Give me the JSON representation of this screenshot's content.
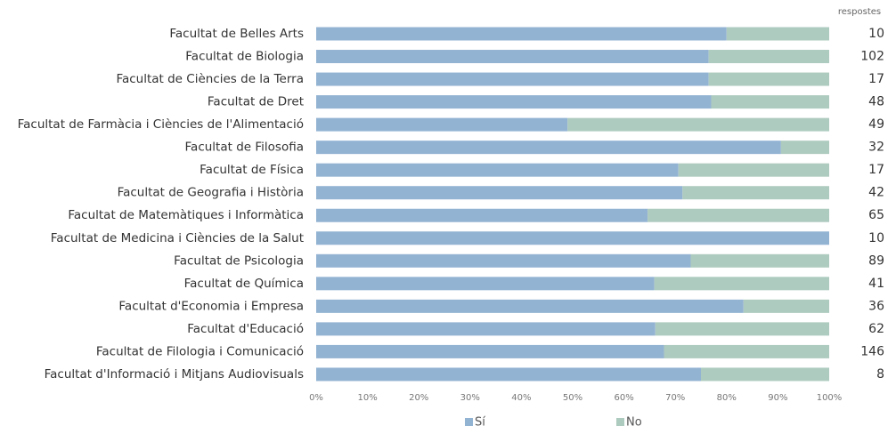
{
  "chart_data": {
    "type": "stacked-bar-horizontal",
    "categories": [
      "Facultat de Belles Arts",
      "Facultat de Biologia",
      "Facultat de Ciències de la Terra",
      "Facultat de Dret",
      "Facultat de Farmàcia i Ciències de l'Alimentació",
      "Facultat de Filosofia",
      "Facultat de Física",
      "Facultat de Geografia i Història",
      "Facultat de Matemàtiques i Informàtica",
      "Facultat de Medicina i Ciències de la Salut",
      "Facultat de Psicologia",
      "Facultat de Química",
      "Facultat d'Economia i Empresa",
      "Facultat d'Educació",
      "Facultat de Filologia i Comunicació",
      "Facultat d'Informació i Mitjans Audiovisuals"
    ],
    "series": [
      {
        "name": "Sí",
        "color": "#93b3d3",
        "values": [
          80,
          76.5,
          76.5,
          77,
          49,
          90.6,
          70.6,
          71.4,
          64.6,
          100,
          73,
          65.9,
          83.3,
          66.1,
          67.8,
          75
        ]
      },
      {
        "name": "No",
        "color": "#aecbbf",
        "values": [
          20,
          23.5,
          23.5,
          23,
          51,
          9.4,
          29.4,
          28.6,
          35.4,
          0,
          27,
          34.1,
          16.7,
          33.9,
          32.2,
          25
        ]
      }
    ],
    "responses_label": "respostes",
    "responses": [
      10,
      102,
      17,
      48,
      49,
      32,
      17,
      42,
      65,
      10,
      89,
      41,
      36,
      62,
      146,
      8
    ],
    "xlim": [
      0,
      100
    ],
    "xticks": [
      {
        "value": 0,
        "label": "0%"
      },
      {
        "value": 10,
        "label": "10%"
      },
      {
        "value": 20,
        "label": "20%"
      },
      {
        "value": 30,
        "label": "30%"
      },
      {
        "value": 40,
        "label": "40%"
      },
      {
        "value": 50,
        "label": "50%"
      },
      {
        "value": 60,
        "label": "60%"
      },
      {
        "value": 70,
        "label": "70%"
      },
      {
        "value": 80,
        "label": "80%"
      },
      {
        "value": 90,
        "label": "90%"
      },
      {
        "value": 100,
        "label": "100%"
      }
    ],
    "grid": false,
    "legend": "bottom"
  }
}
